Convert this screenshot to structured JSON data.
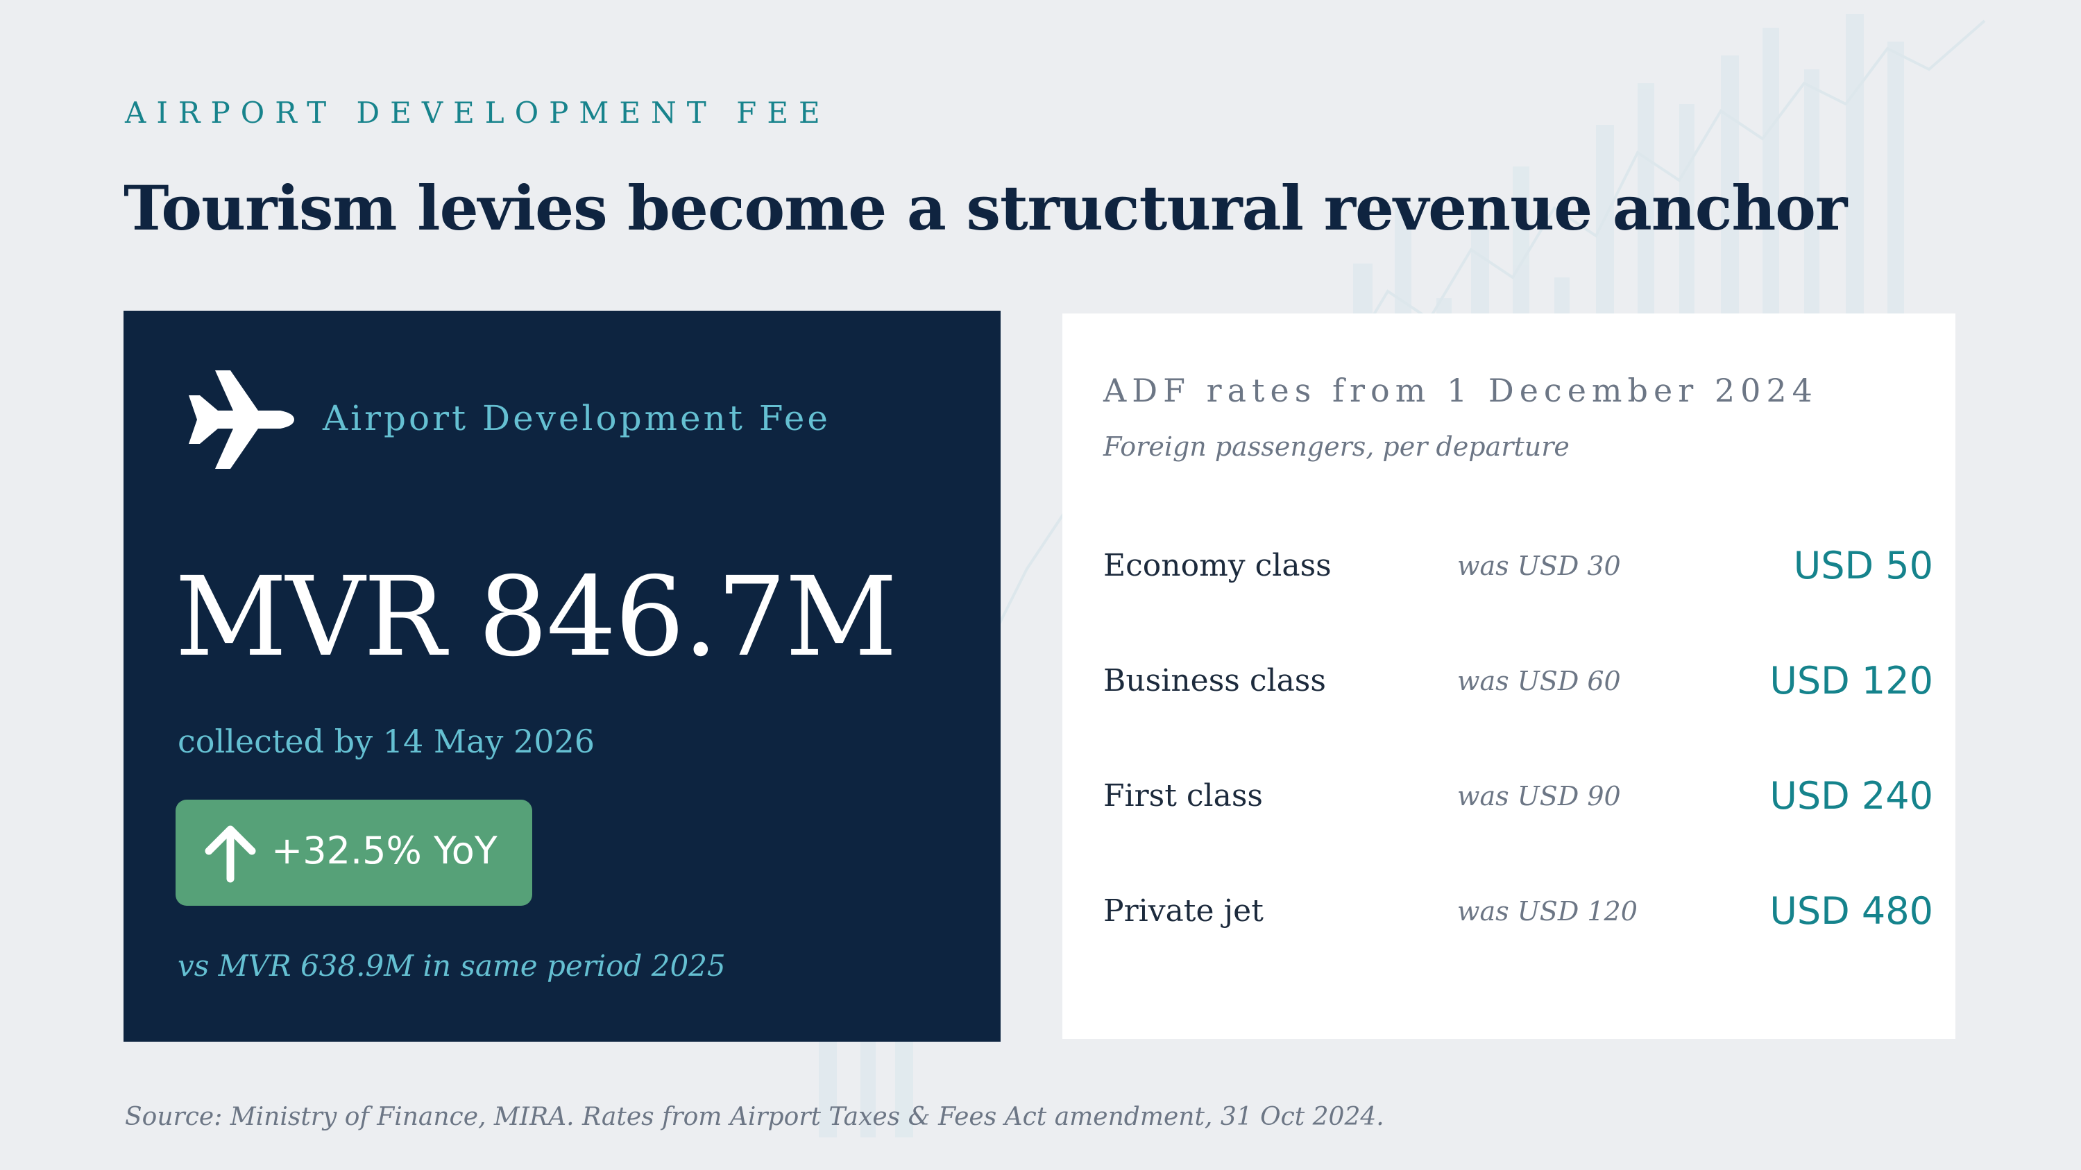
{
  "eyebrow": "AIRPORT DEVELOPMENT FEE",
  "title": "Tourism levies become a structural revenue anchor",
  "summary": {
    "label": "Airport Development Fee",
    "icon": "airplane-icon",
    "value": "MVR 846.7M",
    "collected": "collected by 14 May 2026",
    "badge": {
      "icon": "arrow-up-icon",
      "text": "+32.5% YoY",
      "color": "#56a178"
    },
    "comparison": "vs MVR 638.9M in same period 2025"
  },
  "rates": {
    "title": "ADF rates from 1 December 2024",
    "subtitle": "Foreign passengers, per departure",
    "rows": [
      {
        "class": "Economy class",
        "was": "was USD 30",
        "now": "USD 50"
      },
      {
        "class": "Business class",
        "was": "was USD 60",
        "now": "USD 120"
      },
      {
        "class": "First class",
        "was": "was USD 90",
        "now": "USD 240"
      },
      {
        "class": "Private jet",
        "was": "was USD 120",
        "now": "USD 480"
      }
    ]
  },
  "source": "Source: Ministry of Finance, MIRA. Rates from Airport Taxes & Fees Act amendment, 31 Oct 2024.",
  "colors": {
    "accent": "#17838c",
    "navy": "#0d2440",
    "highlight": "#65c0d2",
    "positive": "#56a178"
  }
}
